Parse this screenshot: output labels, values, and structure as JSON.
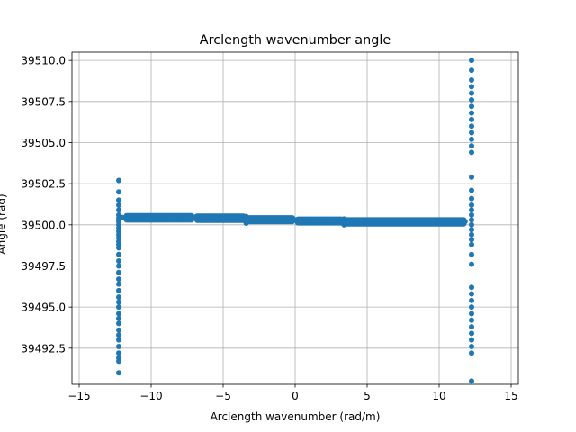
{
  "chart_data": {
    "type": "scatter",
    "title": "Arclength wavenumber angle",
    "xlabel": "Arclength wavenumber (rad/m)",
    "ylabel": "Angle (rad)",
    "xlim": [
      -15.5,
      15.5
    ],
    "ylim": [
      39490.3,
      39510.5
    ],
    "xticks": [
      -15,
      -10,
      -5,
      0,
      5,
      10,
      15
    ],
    "xtick_labels": [
      "−15",
      "−10",
      "−5",
      "0",
      "5",
      "10",
      "15"
    ],
    "yticks": [
      39492.5,
      39495.0,
      39497.5,
      39500.0,
      39502.5,
      39505.0,
      39507.5,
      39510.0
    ],
    "ytick_labels": [
      "39492.5",
      "39495.0",
      "39497.5",
      "39500.0",
      "39502.5",
      "39505.0",
      "39507.5",
      "39510.0"
    ],
    "grid": true,
    "marker_color": "#1f77b4",
    "series": [
      {
        "points": [
          [
            -12.25,
            39502.7
          ],
          [
            -12.25,
            39502.0
          ],
          [
            -12.25,
            39501.5
          ],
          [
            -12.25,
            39501.2
          ],
          [
            -12.25,
            39500.9
          ],
          [
            -12.25,
            39500.6
          ],
          [
            -12.25,
            39500.4
          ],
          [
            -12.25,
            39500.2
          ],
          [
            -12.25,
            39500.0
          ],
          [
            -12.25,
            39499.8
          ],
          [
            -12.25,
            39499.6
          ],
          [
            -12.25,
            39499.4
          ],
          [
            -12.25,
            39499.2
          ],
          [
            -12.25,
            39499.0
          ],
          [
            -12.25,
            39498.8
          ],
          [
            -12.25,
            39498.6
          ],
          [
            -12.25,
            39498.2
          ],
          [
            -12.25,
            39497.8
          ],
          [
            -12.25,
            39497.5
          ],
          [
            -12.25,
            39497.1
          ],
          [
            -12.25,
            39496.7
          ],
          [
            -12.25,
            39496.4
          ],
          [
            -12.25,
            39496.0
          ],
          [
            -12.25,
            39495.6
          ],
          [
            -12.25,
            39495.3
          ],
          [
            -12.25,
            39495.0
          ],
          [
            -12.25,
            39494.6
          ],
          [
            -12.25,
            39494.3
          ],
          [
            -12.25,
            39494.0
          ],
          [
            -12.25,
            39493.6
          ],
          [
            -12.25,
            39493.3
          ],
          [
            -12.25,
            39493.0
          ],
          [
            -12.25,
            39492.6
          ],
          [
            -12.25,
            39492.2
          ],
          [
            -12.25,
            39491.9
          ],
          [
            -12.25,
            39491.7
          ],
          [
            -12.25,
            39491.0
          ],
          [
            -12.0,
            39500.45
          ],
          [
            -11.5,
            39500.4
          ],
          [
            -11.0,
            39500.4
          ],
          [
            -10.0,
            39500.45
          ],
          [
            -9.0,
            39500.45
          ],
          [
            -8.0,
            39500.45
          ],
          [
            -7.0,
            39500.45
          ],
          [
            -6.0,
            39500.4
          ],
          [
            -5.0,
            39500.4
          ],
          [
            -4.0,
            39500.4
          ],
          [
            -3.4,
            39500.5
          ],
          [
            -3.4,
            39500.1
          ],
          [
            -3.0,
            39500.4
          ],
          [
            -2.0,
            39500.35
          ],
          [
            -1.0,
            39500.3
          ],
          [
            0.0,
            39500.3
          ],
          [
            1.0,
            39500.25
          ],
          [
            2.0,
            39500.25
          ],
          [
            3.0,
            39500.2
          ],
          [
            3.4,
            39500.35
          ],
          [
            3.4,
            39500.0
          ],
          [
            4.0,
            39500.2
          ],
          [
            5.0,
            39500.2
          ],
          [
            6.0,
            39500.2
          ],
          [
            7.0,
            39500.2
          ],
          [
            8.0,
            39500.2
          ],
          [
            9.0,
            39500.2
          ],
          [
            10.0,
            39500.2
          ],
          [
            11.0,
            39500.2
          ],
          [
            11.8,
            39500.2
          ],
          [
            12.25,
            39510.0
          ],
          [
            12.25,
            39509.4
          ],
          [
            12.25,
            39508.8
          ],
          [
            12.25,
            39508.4
          ],
          [
            12.25,
            39508.0
          ],
          [
            12.25,
            39507.6
          ],
          [
            12.25,
            39507.2
          ],
          [
            12.25,
            39506.8
          ],
          [
            12.25,
            39506.4
          ],
          [
            12.25,
            39506.0
          ],
          [
            12.25,
            39505.6
          ],
          [
            12.25,
            39505.2
          ],
          [
            12.25,
            39504.8
          ],
          [
            12.25,
            39504.4
          ],
          [
            12.25,
            39502.9
          ],
          [
            12.25,
            39502.1
          ],
          [
            12.25,
            39501.6
          ],
          [
            12.25,
            39501.2
          ],
          [
            12.25,
            39500.9
          ],
          [
            12.25,
            39500.6
          ],
          [
            12.25,
            39500.3
          ],
          [
            12.25,
            39500.0
          ],
          [
            12.25,
            39499.7
          ],
          [
            12.25,
            39499.4
          ],
          [
            12.25,
            39499.1
          ],
          [
            12.25,
            39498.8
          ],
          [
            12.25,
            39498.2
          ],
          [
            12.25,
            39497.6
          ],
          [
            12.25,
            39496.2
          ],
          [
            12.25,
            39495.8
          ],
          [
            12.25,
            39495.4
          ],
          [
            12.25,
            39495.0
          ],
          [
            12.25,
            39494.6
          ],
          [
            12.25,
            39494.2
          ],
          [
            12.25,
            39493.8
          ],
          [
            12.25,
            39493.4
          ],
          [
            12.25,
            39493.0
          ],
          [
            12.25,
            39492.6
          ],
          [
            12.25,
            39492.2
          ],
          [
            12.25,
            39490.5
          ]
        ],
        "bands": [
          {
            "x_start": -11.9,
            "x_end": -7.0,
            "y_low": 39500.3,
            "y_high": 39500.55
          },
          {
            "x_start": -7.0,
            "x_end": -3.4,
            "y_low": 39500.28,
            "y_high": 39500.52
          },
          {
            "x_start": -3.4,
            "x_end": 0.0,
            "y_low": 39500.2,
            "y_high": 39500.42
          },
          {
            "x_start": 0.0,
            "x_end": 3.4,
            "y_low": 39500.12,
            "y_high": 39500.34
          },
          {
            "x_start": 3.4,
            "x_end": 11.9,
            "y_low": 39500.06,
            "y_high": 39500.3
          }
        ]
      }
    ]
  }
}
